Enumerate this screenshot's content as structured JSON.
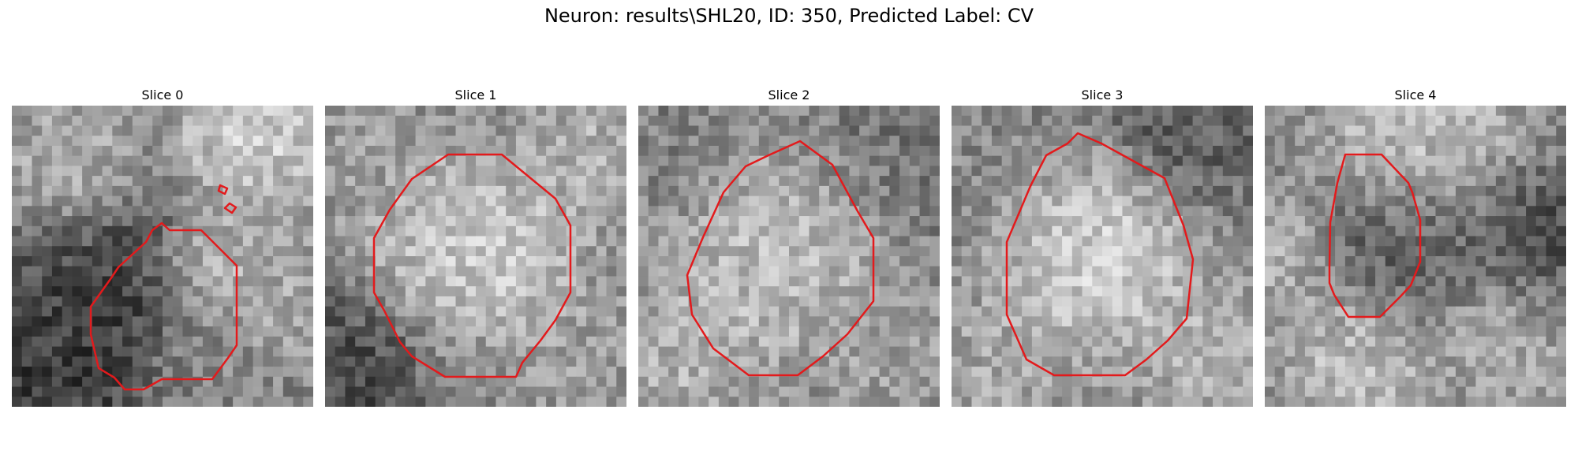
{
  "figure": {
    "title": "Neuron: results\\SHL20, ID: 350, Predicted Label: CV",
    "panels": [
      {
        "title": "Slice 0",
        "seed": 11,
        "contour_color": "#e31a1c"
      },
      {
        "title": "Slice 1",
        "seed": 23,
        "contour_color": "#e31a1c"
      },
      {
        "title": "Slice 2",
        "seed": 37,
        "contour_color": "#e31a1c"
      },
      {
        "title": "Slice 3",
        "seed": 49,
        "contour_color": "#e31a1c"
      },
      {
        "title": "Slice 4",
        "seed": 61,
        "contour_color": "#e31a1c"
      }
    ],
    "colormap": "gray"
  }
}
